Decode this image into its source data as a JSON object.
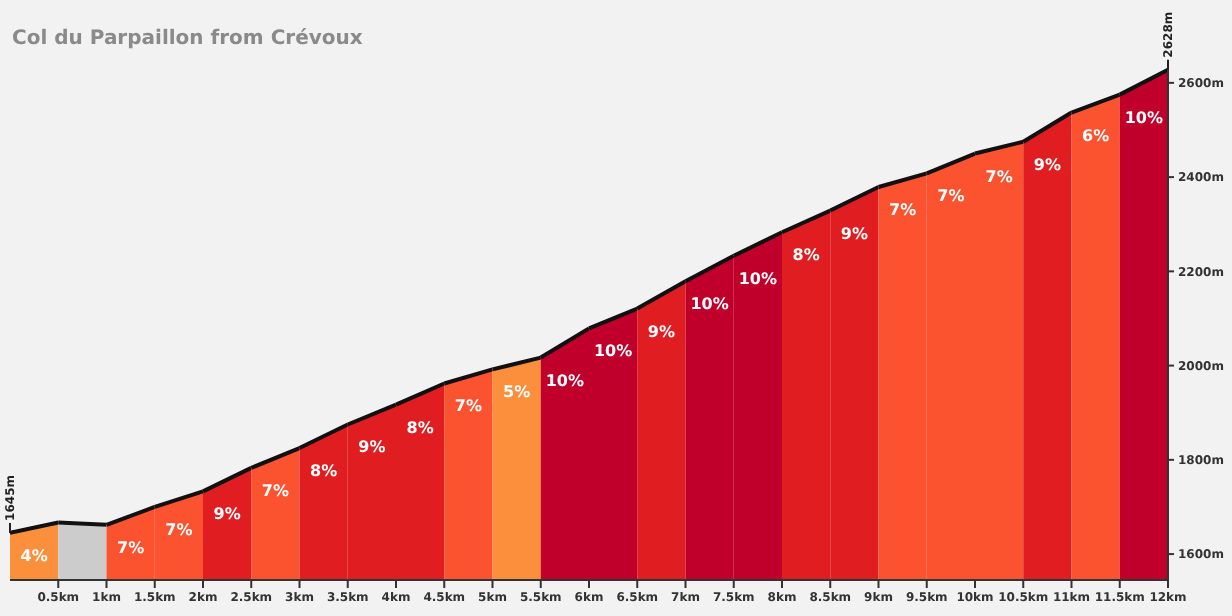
{
  "chart_data": {
    "type": "area",
    "title": "Col du Parpaillon from Crévoux",
    "series": [
      {
        "name": "4%",
        "color": "#fb8f3c",
        "x": [
          0,
          0.5
        ],
        "values": [
          1645,
          1667
        ]
      },
      {
        "color": "#cccccc",
        "x": [
          0.5,
          1
        ],
        "values": [
          1667,
          1662
        ]
      },
      {
        "name": "7%",
        "color": "#fb5230",
        "x": [
          1,
          1.5
        ],
        "values": [
          1662,
          1700
        ]
      },
      {
        "name": "7%",
        "color": "#fb5230",
        "x": [
          1.5,
          2
        ],
        "values": [
          1700,
          1733
        ]
      },
      {
        "name": "9%",
        "color": "#e01e22",
        "x": [
          2,
          2.5
        ],
        "values": [
          1733,
          1783
        ]
      },
      {
        "name": "7%",
        "color": "#fb5230",
        "x": [
          2.5,
          3
        ],
        "values": [
          1783,
          1825
        ]
      },
      {
        "name": "8%",
        "color": "#e01e22",
        "x": [
          3,
          3.5
        ],
        "values": [
          1825,
          1875
        ]
      },
      {
        "name": "9%",
        "color": "#e01e22",
        "x": [
          3.5,
          4
        ],
        "values": [
          1875,
          1917
        ]
      },
      {
        "name": "8%",
        "color": "#e01e22",
        "x": [
          4,
          4.5
        ],
        "values": [
          1917,
          1962
        ]
      },
      {
        "name": "7%",
        "color": "#fb5230",
        "x": [
          4.5,
          5
        ],
        "values": [
          1962,
          1992
        ]
      },
      {
        "name": "5%",
        "color": "#fb8f3c",
        "x": [
          5,
          5.5
        ],
        "values": [
          1992,
          2017
        ]
      },
      {
        "name": "10%",
        "color": "#c0002b",
        "x": [
          5.5,
          6
        ],
        "values": [
          2017,
          2079
        ]
      },
      {
        "name": "10%",
        "color": "#c0002b",
        "x": [
          6,
          6.5
        ],
        "values": [
          2079,
          2121
        ]
      },
      {
        "name": "9%",
        "color": "#e01e22",
        "x": [
          6.5,
          7
        ],
        "values": [
          2121,
          2179
        ]
      },
      {
        "name": "10%",
        "color": "#c0002b",
        "x": [
          7,
          7.5
        ],
        "values": [
          2179,
          2233
        ]
      },
      {
        "name": "10%",
        "color": "#c0002b",
        "x": [
          7.5,
          8
        ],
        "values": [
          2233,
          2283
        ]
      },
      {
        "name": "8%",
        "color": "#e01e22",
        "x": [
          8,
          8.5
        ],
        "values": [
          2283,
          2329
        ]
      },
      {
        "name": "9%",
        "color": "#e01e22",
        "x": [
          8.5,
          9
        ],
        "values": [
          2329,
          2379
        ]
      },
      {
        "name": "7%",
        "color": "#fb5230",
        "x": [
          9,
          9.5
        ],
        "values": [
          2379,
          2408
        ]
      },
      {
        "name": "7%",
        "color": "#fb5230",
        "x": [
          9.5,
          10
        ],
        "values": [
          2408,
          2450
        ]
      },
      {
        "name": "7%",
        "color": "#fb5230",
        "x": [
          10,
          10.5
        ],
        "values": [
          2450,
          2475
        ]
      },
      {
        "name": "9%",
        "color": "#e01e22",
        "x": [
          10.5,
          11
        ],
        "values": [
          2475,
          2537
        ]
      },
      {
        "name": "6%",
        "color": "#fb5230",
        "x": [
          11,
          11.5
        ],
        "values": [
          2537,
          2575
        ]
      },
      {
        "name": "10%",
        "color": "#c0002b",
        "x": [
          11.5,
          12
        ],
        "values": [
          2575,
          2628
        ]
      }
    ],
    "xlim": [
      0,
      12
    ],
    "xticks": [
      {
        "value": 0.5,
        "label": "0.5km"
      },
      {
        "value": 1,
        "label": "1km"
      },
      {
        "value": 1.5,
        "label": "1.5km"
      },
      {
        "value": 2,
        "label": "2km"
      },
      {
        "value": 2.5,
        "label": "2.5km"
      },
      {
        "value": 3,
        "label": "3km"
      },
      {
        "value": 3.5,
        "label": "3.5km"
      },
      {
        "value": 4,
        "label": "4km"
      },
      {
        "value": 4.5,
        "label": "4.5km"
      },
      {
        "value": 5,
        "label": "5km"
      },
      {
        "value": 5.5,
        "label": "5.5km"
      },
      {
        "value": 6,
        "label": "6km"
      },
      {
        "value": 6.5,
        "label": "6.5km"
      },
      {
        "value": 7,
        "label": "7km"
      },
      {
        "value": 7.5,
        "label": "7.5km"
      },
      {
        "value": 8,
        "label": "8km"
      },
      {
        "value": 8.5,
        "label": "8.5km"
      },
      {
        "value": 9,
        "label": "9km"
      },
      {
        "value": 9.5,
        "label": "9.5km"
      },
      {
        "value": 10,
        "label": "10km"
      },
      {
        "value": 10.5,
        "label": "10.5km"
      },
      {
        "value": 11,
        "label": "11km"
      },
      {
        "value": 11.5,
        "label": "11.5km"
      },
      {
        "value": 12,
        "label": "12km"
      }
    ],
    "ylim": [
      1545,
      2640
    ],
    "yticks": [
      {
        "value": 1600,
        "label": "1600m"
      },
      {
        "value": 1800,
        "label": "1800m"
      },
      {
        "value": 2000,
        "label": "2000m"
      },
      {
        "value": 2200,
        "label": "2200m"
      },
      {
        "value": 2400,
        "label": "2400m"
      },
      {
        "value": 2600,
        "label": "2600m"
      }
    ],
    "grid": false,
    "legend": false,
    "annotations": [
      {
        "text": "1645m",
        "x": 0,
        "y": 1645
      },
      {
        "text": "2628m",
        "x": 12,
        "y": 2628
      }
    ]
  }
}
